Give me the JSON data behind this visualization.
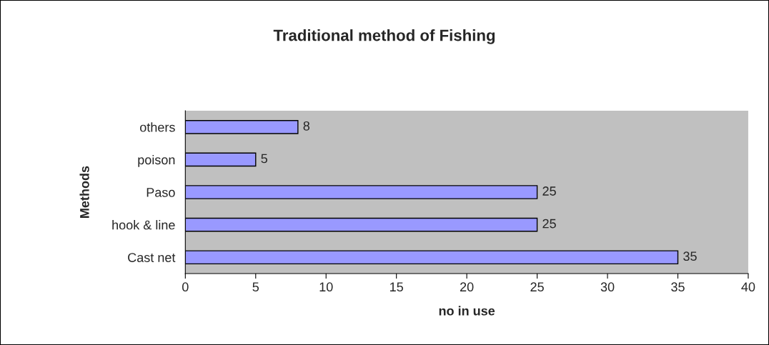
{
  "chart_data": {
    "type": "bar",
    "orientation": "horizontal",
    "title": "Traditional method of Fishing",
    "xlabel": "no in use",
    "ylabel": "Methods",
    "categories": [
      "others",
      "poison",
      "Paso",
      "hook & line",
      "Cast net"
    ],
    "values": [
      8,
      5,
      25,
      25,
      35
    ],
    "color": "#9999ff",
    "data_labels": true,
    "xlim": [
      0,
      40
    ],
    "xticks": [
      0,
      5,
      10,
      15,
      20,
      25,
      30,
      35,
      40
    ],
    "grid": false,
    "legend": false
  }
}
